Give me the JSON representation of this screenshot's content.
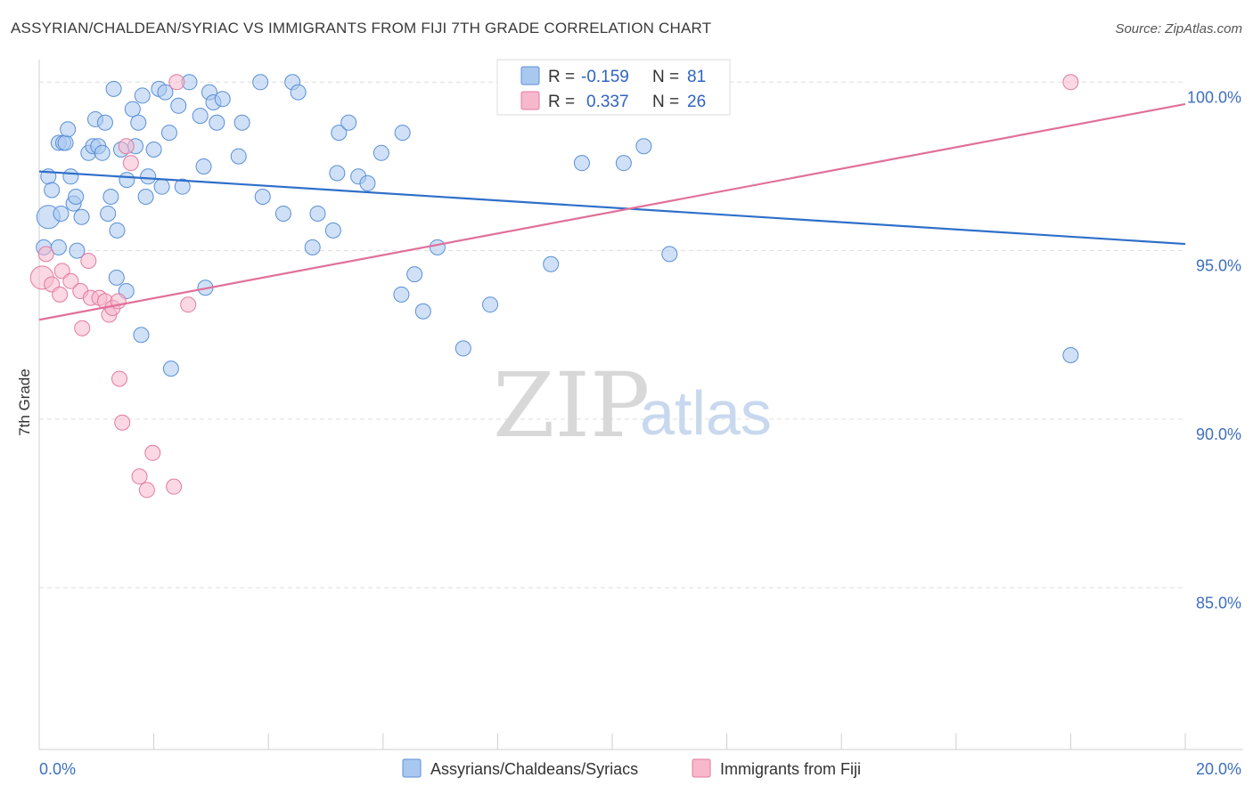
{
  "header": {
    "title": "ASSYRIAN/CHALDEAN/SYRIAC VS IMMIGRANTS FROM FIJI 7TH GRADE CORRELATION CHART",
    "source": "Source: ZipAtlas.com"
  },
  "watermark": {
    "zip": "ZIP",
    "atlas": "atlas"
  },
  "legend_top": {
    "rows": [
      {
        "r_label": "R =",
        "r_value": "-0.159",
        "n_label": "N =",
        "n_value": "81",
        "color": "#a9c8f0"
      },
      {
        "r_label": "R =",
        "r_value": "0.337",
        "n_label": "N =",
        "n_value": "26",
        "color": "#f7b8cc"
      }
    ]
  },
  "chart_data": {
    "type": "scatter",
    "title": "ASSYRIAN/CHALDEAN/SYRIAC VS IMMIGRANTS FROM FIJI 7TH GRADE CORRELATION CHART",
    "xlabel": "",
    "ylabel": "7th Grade",
    "xlim": [
      0,
      20
    ],
    "ylim": [
      80.2,
      100.8
    ],
    "x_tick_labels": [
      "0.0%",
      "20.0%"
    ],
    "x_ticks": [
      0,
      2,
      4,
      6,
      8,
      10,
      12,
      14,
      16,
      18,
      20
    ],
    "y_ticks": [
      85,
      90,
      95,
      100
    ],
    "y_tick_labels": [
      "85.0%",
      "90.0%",
      "95.0%",
      "100.0%"
    ],
    "grid": "horizontal dashed",
    "legend_placement": "top-center, bottom",
    "series": [
      {
        "name": "Assyrians/Chaldeans/Syriacs",
        "color": "#a9c8f0",
        "stroke": "#5a8fd6",
        "trend": {
          "x": [
            0,
            20
          ],
          "y": [
            97.35,
            95.2
          ],
          "color": "#2f6fc9"
        },
        "points": [
          [
            0.16,
            96.0
          ],
          [
            0.08,
            95.1
          ],
          [
            0.34,
            95.1
          ],
          [
            0.16,
            97.2
          ],
          [
            0.22,
            96.8
          ],
          [
            0.38,
            96.1
          ],
          [
            0.34,
            98.2
          ],
          [
            0.42,
            98.2
          ],
          [
            0.46,
            98.2
          ],
          [
            0.5,
            98.6
          ],
          [
            0.55,
            97.2
          ],
          [
            0.6,
            96.4
          ],
          [
            0.64,
            96.6
          ],
          [
            0.66,
            95.0
          ],
          [
            0.74,
            96.0
          ],
          [
            0.86,
            97.9
          ],
          [
            0.94,
            98.1
          ],
          [
            0.98,
            98.9
          ],
          [
            1.03,
            98.1
          ],
          [
            1.1,
            97.9
          ],
          [
            1.15,
            98.8
          ],
          [
            1.2,
            96.1
          ],
          [
            1.25,
            96.6
          ],
          [
            1.3,
            99.8
          ],
          [
            1.36,
            95.6
          ],
          [
            1.43,
            98.0
          ],
          [
            1.53,
            97.1
          ],
          [
            1.63,
            99.2
          ],
          [
            1.68,
            98.1
          ],
          [
            1.73,
            98.8
          ],
          [
            1.8,
            99.6
          ],
          [
            1.86,
            96.6
          ],
          [
            1.9,
            97.2
          ],
          [
            2.0,
            98.0
          ],
          [
            2.09,
            99.8
          ],
          [
            2.14,
            96.9
          ],
          [
            2.2,
            99.7
          ],
          [
            2.27,
            98.5
          ],
          [
            2.43,
            99.3
          ],
          [
            2.5,
            96.9
          ],
          [
            2.62,
            100.0
          ],
          [
            2.81,
            99.0
          ],
          [
            2.87,
            97.5
          ],
          [
            2.97,
            99.7
          ],
          [
            3.04,
            99.4
          ],
          [
            3.1,
            98.8
          ],
          [
            3.2,
            99.5
          ],
          [
            3.48,
            97.8
          ],
          [
            3.54,
            98.8
          ],
          [
            3.86,
            100.0
          ],
          [
            3.9,
            96.6
          ],
          [
            4.26,
            96.1
          ],
          [
            4.42,
            100.0
          ],
          [
            4.52,
            99.7
          ],
          [
            4.77,
            95.1
          ],
          [
            4.86,
            96.1
          ],
          [
            5.13,
            95.6
          ],
          [
            5.2,
            97.3
          ],
          [
            5.23,
            98.5
          ],
          [
            5.4,
            98.8
          ],
          [
            5.57,
            97.2
          ],
          [
            5.73,
            97.0
          ],
          [
            5.97,
            97.9
          ],
          [
            6.32,
            93.7
          ],
          [
            6.34,
            98.5
          ],
          [
            6.55,
            94.3
          ],
          [
            6.7,
            93.2
          ],
          [
            6.95,
            95.1
          ],
          [
            7.4,
            92.1
          ],
          [
            7.87,
            93.4
          ],
          [
            8.93,
            94.6
          ],
          [
            9.47,
            97.6
          ],
          [
            10.2,
            97.6
          ],
          [
            10.55,
            98.1
          ],
          [
            11.0,
            94.9
          ],
          [
            18.0,
            91.9
          ],
          [
            1.35,
            94.2
          ],
          [
            1.52,
            93.8
          ],
          [
            1.78,
            92.5
          ],
          [
            2.3,
            91.5
          ],
          [
            2.9,
            93.9
          ]
        ]
      },
      {
        "name": "Immigrants from Fiji",
        "color": "#f7b8cc",
        "stroke": "#e27aa0",
        "trend": {
          "x": [
            0,
            20
          ],
          "y": [
            92.95,
            99.35
          ],
          "color": "#e0709a"
        },
        "points": [
          [
            0.05,
            94.2
          ],
          [
            0.12,
            94.9
          ],
          [
            0.22,
            94.0
          ],
          [
            0.36,
            93.7
          ],
          [
            0.4,
            94.4
          ],
          [
            0.55,
            94.1
          ],
          [
            0.72,
            93.8
          ],
          [
            0.75,
            92.7
          ],
          [
            0.86,
            94.7
          ],
          [
            0.9,
            93.6
          ],
          [
            1.05,
            93.6
          ],
          [
            1.15,
            93.5
          ],
          [
            1.22,
            93.1
          ],
          [
            1.28,
            93.3
          ],
          [
            1.38,
            93.5
          ],
          [
            1.4,
            91.2
          ],
          [
            1.45,
            89.9
          ],
          [
            1.52,
            98.1
          ],
          [
            1.6,
            97.6
          ],
          [
            1.75,
            88.3
          ],
          [
            1.88,
            87.9
          ],
          [
            1.98,
            89.0
          ],
          [
            2.35,
            88.0
          ],
          [
            2.6,
            93.4
          ],
          [
            2.4,
            100.0
          ],
          [
            18.0,
            100.0
          ]
        ]
      }
    ]
  }
}
